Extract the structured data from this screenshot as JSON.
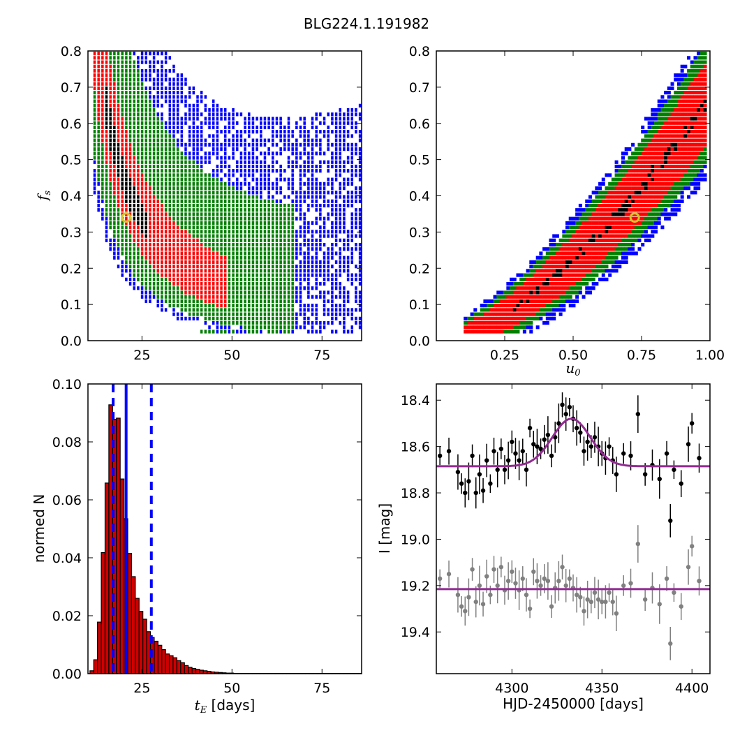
{
  "figure_title": "BLG224.1.191982",
  "colors": {
    "level_outer": "#0000ff",
    "level_mid": "#008000",
    "level_inner": "#ff0000",
    "level_core": "#000000",
    "best_fit_marker": "#d4c42a",
    "hist_bar": "#cc0000",
    "hist_lines": "#0000ff",
    "model_line": "#912b91",
    "data_top": "#000000",
    "data_bottom": "#808080"
  },
  "chart_data": [
    {
      "panel": "top-left",
      "type": "heatmap",
      "description_levels": [
        "blue",
        "green",
        "red",
        "black"
      ],
      "xlabel": "",
      "ylabel_main": "f",
      "ylabel_sub": "s",
      "xlim": [
        10,
        86
      ],
      "ylim": [
        0.0,
        0.8
      ],
      "xticks": [
        "25",
        "50",
        "75"
      ],
      "xtick_values": [
        25,
        50,
        75
      ],
      "yticks": [
        "0.0",
        "0.1",
        "0.2",
        "0.3",
        "0.4",
        "0.5",
        "0.6",
        "0.7",
        "0.8"
      ],
      "ytick_values": [
        0.0,
        0.1,
        0.2,
        0.3,
        0.4,
        0.5,
        0.6,
        0.7,
        0.8
      ],
      "relation": "f_s ~ 1.1 * (t_E / 10)^(-1.2) approximately; band widening at small f_s",
      "best_fit": {
        "x": 20.6,
        "y": 0.34
      }
    },
    {
      "panel": "top-right",
      "type": "heatmap",
      "description_levels": [
        "blue",
        "green",
        "red",
        "black"
      ],
      "xlabel_main": "u",
      "xlabel_sub": "0",
      "ylabel": "",
      "xlim": [
        0.0,
        1.0
      ],
      "ylim": [
        0.0,
        0.8
      ],
      "xticks": [
        "0.25",
        "0.50",
        "0.75",
        "1.00"
      ],
      "xtick_values": [
        0.25,
        0.5,
        0.75,
        1.0
      ],
      "yticks": [
        "0.0",
        "0.1",
        "0.2",
        "0.3",
        "0.4",
        "0.5",
        "0.6",
        "0.7",
        "0.8"
      ],
      "ytick_values": [
        0.0,
        0.1,
        0.2,
        0.3,
        0.4,
        0.5,
        0.6,
        0.7,
        0.8
      ],
      "best_fit": {
        "x": 0.725,
        "y": 0.34
      }
    },
    {
      "panel": "bottom-left",
      "type": "bar",
      "xlabel_math": "t",
      "xlabel_sub": "E",
      "xlabel_rest": " [days]",
      "ylabel": "normed N",
      "xlim": [
        10,
        86
      ],
      "ylim": [
        0.0,
        0.1
      ],
      "xticks": [
        "25",
        "50",
        "75"
      ],
      "xtick_values": [
        25,
        50,
        75
      ],
      "yticks": [
        "0.00",
        "0.02",
        "0.04",
        "0.06",
        "0.08",
        "0.10"
      ],
      "ytick_values": [
        0.0,
        0.02,
        0.04,
        0.06,
        0.08,
        0.1
      ],
      "bin_width": 1.05,
      "bin_start": 10.55,
      "values": [
        0.001,
        0.0048,
        0.0178,
        0.0418,
        0.0658,
        0.0928,
        0.0878,
        0.0882,
        0.0672,
        0.0535,
        0.0415,
        0.0335,
        0.026,
        0.0215,
        0.0188,
        0.0145,
        0.0125,
        0.0112,
        0.0098,
        0.0083,
        0.0068,
        0.0062,
        0.0055,
        0.0045,
        0.0038,
        0.0028,
        0.0022,
        0.0018,
        0.0015,
        0.0012,
        0.001,
        0.0008,
        0.0006,
        0.0005,
        0.0004,
        0.0003,
        0.0002,
        0.0002,
        0.0001,
        0.0001,
        0.0001,
        0.0001,
        0.0001,
        0.0001,
        0.0001,
        0.0001,
        0.0001,
        0.0001,
        0.0001,
        0.0001,
        0.0001,
        0.0001,
        0.0001,
        0.0001,
        0.0001,
        0.0001,
        0.0001,
        0.0001,
        0.0001,
        0.0001,
        0.0001,
        0.0001,
        0.0001,
        0.0001,
        0.0001,
        0.0001,
        0.0001,
        0.0001,
        0.0001,
        0.0001,
        0.0001,
        0.0001
      ],
      "median_line": 20.6,
      "dashed_lines": [
        17.0,
        27.6
      ]
    },
    {
      "panel": "bottom-right",
      "type": "scatter",
      "xlabel": "HJD-2450000 [days]",
      "ylabel": "I [mag]",
      "xlim": [
        4258,
        4410
      ],
      "ylim": [
        19.58,
        18.33
      ],
      "y_inverted": true,
      "xticks": [
        "4300",
        "4350",
        "4400"
      ],
      "xtick_values": [
        4300,
        4350,
        4400
      ],
      "yticks": [
        "18.4",
        "18.6",
        "18.8",
        "19.0",
        "19.2",
        "19.4"
      ],
      "ytick_values": [
        18.4,
        18.6,
        18.8,
        19.0,
        19.2,
        19.4
      ],
      "model": {
        "baseline": 18.685,
        "peak_mag": 18.48,
        "peak_time": 4333,
        "width": 15
      },
      "residual_baseline": 19.215,
      "series": [
        {
          "name": "",
          "color": "black",
          "x": [
            4260,
            4265,
            4270,
            4272,
            4274,
            4276,
            4278,
            4280,
            4282,
            4284,
            4286,
            4288,
            4290,
            4292,
            4294,
            4296,
            4298,
            4300,
            4302,
            4304,
            4306,
            4308,
            4310,
            4312,
            4314,
            4316,
            4318,
            4320,
            4322,
            4324,
            4326,
            4328,
            4330,
            4332,
            4334,
            4336,
            4338,
            4340,
            4342,
            4344,
            4346,
            4348,
            4350,
            4352,
            4354,
            4356,
            4358,
            4362,
            4366,
            4370,
            4374,
            4378,
            4382,
            4386,
            4388,
            4390,
            4394,
            4398,
            4400,
            4404
          ],
          "y": [
            18.64,
            18.62,
            18.71,
            18.76,
            18.8,
            18.75,
            18.64,
            18.8,
            18.72,
            18.79,
            18.66,
            18.76,
            18.62,
            18.7,
            18.61,
            18.7,
            18.66,
            18.58,
            18.63,
            18.66,
            18.62,
            18.7,
            18.52,
            18.59,
            18.6,
            18.61,
            18.57,
            18.55,
            18.64,
            18.56,
            18.5,
            18.42,
            18.46,
            18.43,
            18.48,
            18.52,
            18.54,
            18.62,
            18.58,
            18.6,
            18.56,
            18.6,
            18.63,
            18.65,
            18.6,
            18.66,
            18.72,
            18.63,
            18.64,
            18.46,
            18.72,
            18.68,
            18.74,
            18.63,
            18.92,
            18.7,
            18.76,
            18.59,
            18.5,
            18.65
          ]
        },
        {
          "name": "",
          "color": "gray",
          "x": [
            4260,
            4265,
            4270,
            4272,
            4274,
            4276,
            4278,
            4280,
            4282,
            4284,
            4286,
            4288,
            4290,
            4292,
            4294,
            4296,
            4298,
            4300,
            4302,
            4304,
            4306,
            4308,
            4310,
            4312,
            4314,
            4316,
            4318,
            4320,
            4322,
            4324,
            4326,
            4328,
            4330,
            4332,
            4334,
            4336,
            4338,
            4340,
            4342,
            4344,
            4346,
            4348,
            4350,
            4352,
            4354,
            4356,
            4358,
            4362,
            4366,
            4370,
            4374,
            4378,
            4382,
            4386,
            4388,
            4390,
            4394,
            4398,
            4400,
            4404
          ],
          "y": [
            19.17,
            19.15,
            19.24,
            19.29,
            19.31,
            19.25,
            19.13,
            19.27,
            19.2,
            19.28,
            19.16,
            19.24,
            19.13,
            19.2,
            19.12,
            19.22,
            19.18,
            19.14,
            19.19,
            19.22,
            19.17,
            19.24,
            19.3,
            19.14,
            19.18,
            19.2,
            19.17,
            19.18,
            19.29,
            19.21,
            19.18,
            19.12,
            19.2,
            19.17,
            19.21,
            19.24,
            19.25,
            19.31,
            19.26,
            19.27,
            19.23,
            19.26,
            19.27,
            19.27,
            19.23,
            19.27,
            19.32,
            19.2,
            19.19,
            19.02,
            19.26,
            19.21,
            19.28,
            19.17,
            19.45,
            19.23,
            19.29,
            19.12,
            19.03,
            19.18
          ]
        }
      ]
    }
  ]
}
